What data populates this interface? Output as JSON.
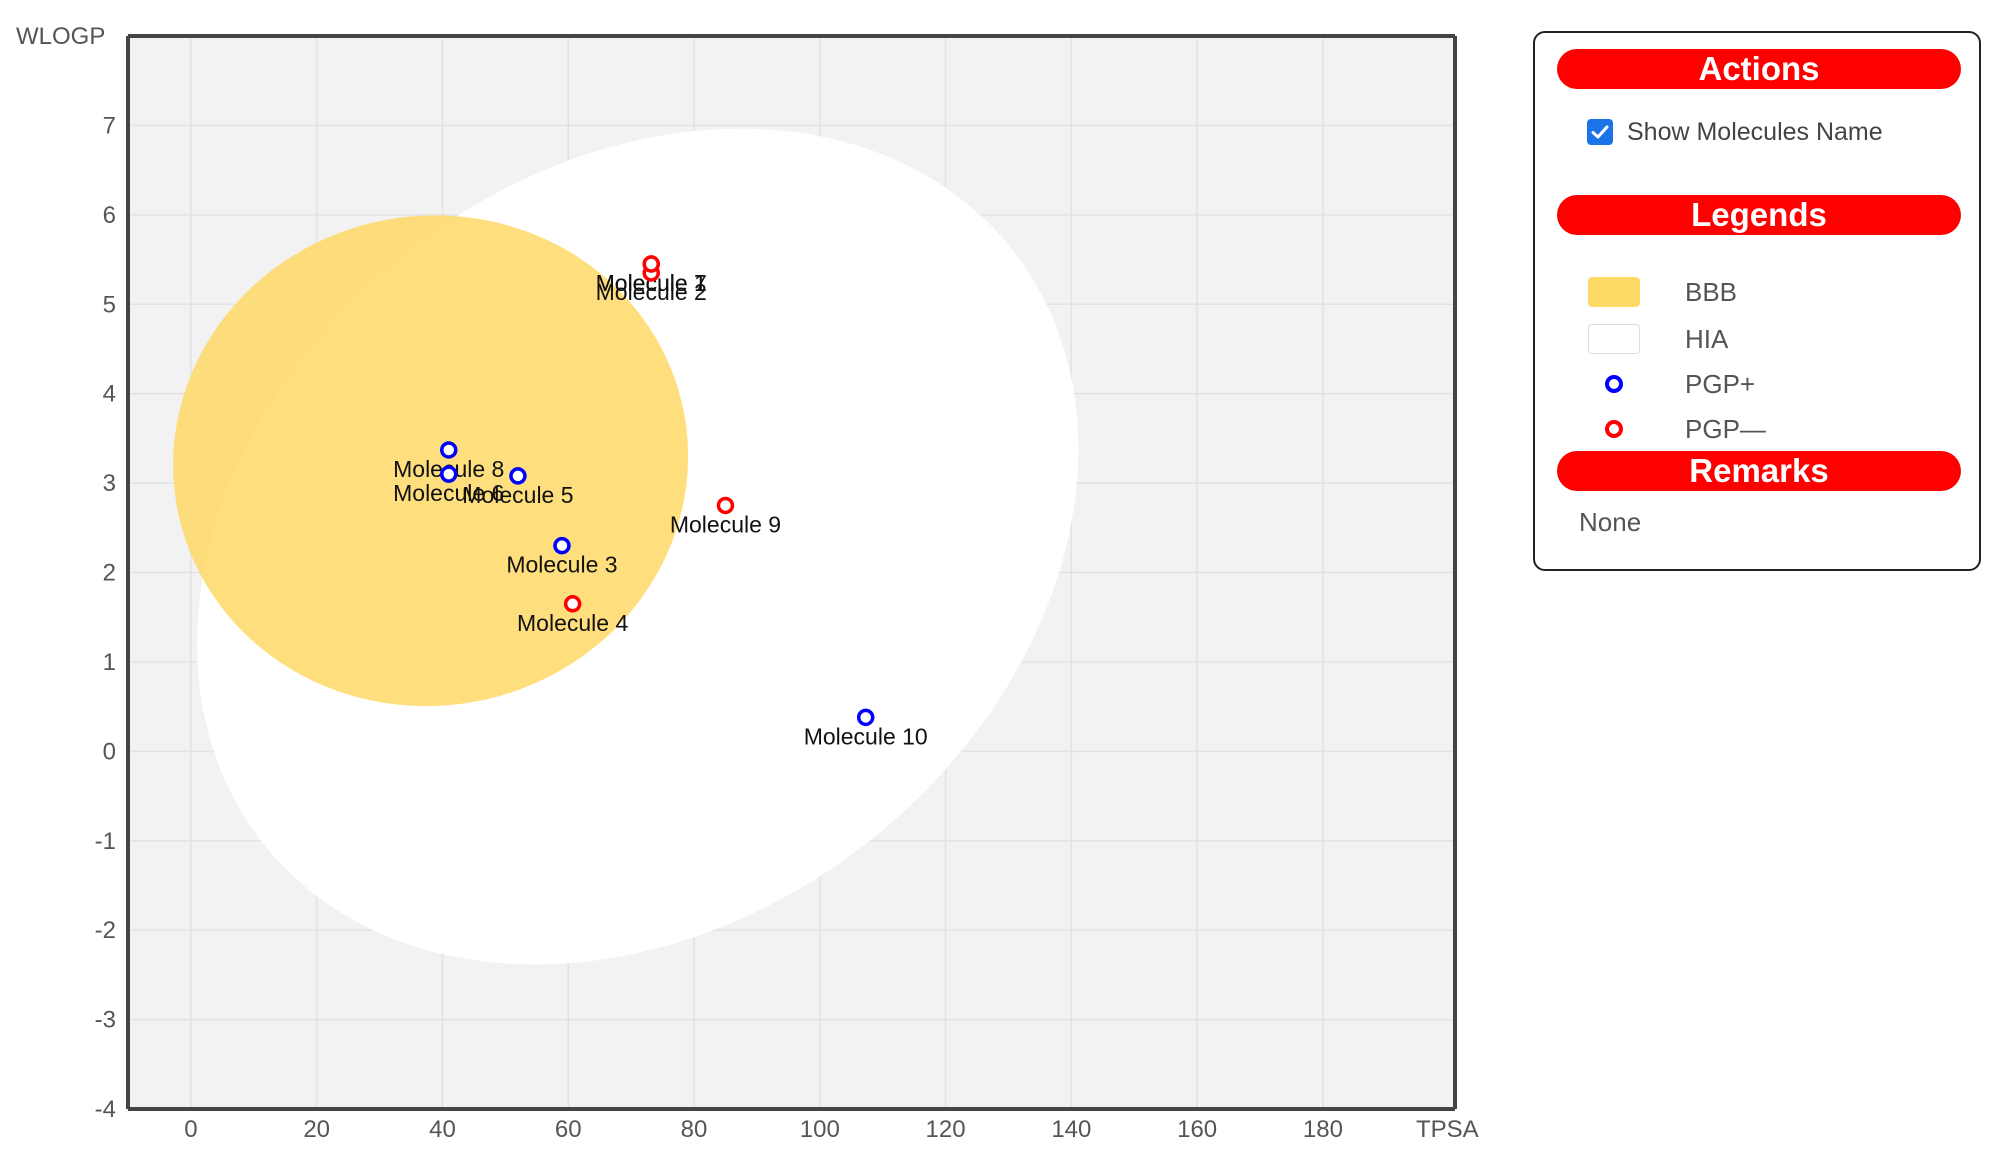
{
  "chart_data": {
    "type": "scatter",
    "xlabel": "TPSA",
    "ylabel": "WLOGP",
    "xlim": [
      -10,
      201
    ],
    "ylim": [
      -4,
      8
    ],
    "xticks": [
      0,
      20,
      40,
      60,
      80,
      100,
      120,
      140,
      160,
      180
    ],
    "yticks": [
      -4,
      -3,
      -2,
      -1,
      0,
      1,
      2,
      3,
      4,
      5,
      6,
      7
    ],
    "grid": true,
    "regions": [
      {
        "name": "HIA",
        "shape": "ellipse",
        "cx": 71.05,
        "cy": 2.29,
        "rx": 76.0,
        "ry": 4.19,
        "rotation_deg": -38.6,
        "color": "#ffffff"
      },
      {
        "name": "BBB",
        "shape": "ellipse",
        "cx": 38.12,
        "cy": 3.25,
        "rx": 41.0,
        "ry": 2.74,
        "rotation_deg": -10,
        "color": "#ffd966"
      }
    ],
    "points": [
      {
        "label": "Molecule 1",
        "x": 73.2,
        "y": 5.45,
        "pgp": "PGP-"
      },
      {
        "label": "Molecule 2",
        "x": 73.2,
        "y": 5.35,
        "pgp": "PGP-"
      },
      {
        "label": "Molecule 3",
        "x": 59.0,
        "y": 2.3,
        "pgp": "PGP+"
      },
      {
        "label": "Molecule 4",
        "x": 60.7,
        "y": 1.65,
        "pgp": "PGP-"
      },
      {
        "label": "Molecule 5",
        "x": 52.0,
        "y": 3.08,
        "pgp": "PGP+"
      },
      {
        "label": "Molecule 6",
        "x": 41.0,
        "y": 3.1,
        "pgp": "PGP+"
      },
      {
        "label": "Molecule 7",
        "x": 73.2,
        "y": 5.45,
        "pgp": "PGP-"
      },
      {
        "label": "Molecule 8",
        "x": 41.0,
        "y": 3.37,
        "pgp": "PGP+"
      },
      {
        "label": "Molecule 9",
        "x": 85.0,
        "y": 2.75,
        "pgp": "PGP-"
      },
      {
        "label": "Molecule 10",
        "x": 107.3,
        "y": 0.38,
        "pgp": "PGP+"
      }
    ]
  },
  "colors": {
    "plot_bg": "#f2f2f2",
    "grid": "#e2e2e2",
    "axis": "#444444",
    "pgp_plus": "#0000ff",
    "pgp_minus": "#ff0000",
    "bbb": "#ffd966",
    "hia": "#ffffff",
    "header_bg": "#ff0000"
  },
  "panel": {
    "actions_title": "Actions",
    "show_names_label": "Show Molecules Name",
    "show_names_checked": true,
    "legends_title": "Legends",
    "legend": [
      {
        "label": "BBB",
        "kind": "rect",
        "color": "#ffd966"
      },
      {
        "label": "HIA",
        "kind": "rect",
        "color": "#ffffff"
      },
      {
        "label": "PGP+",
        "kind": "circle",
        "color": "#0000ff"
      },
      {
        "label": "PGP—",
        "kind": "circle",
        "color": "#ff0000"
      }
    ],
    "remarks_title": "Remarks",
    "remarks_text": "None"
  }
}
